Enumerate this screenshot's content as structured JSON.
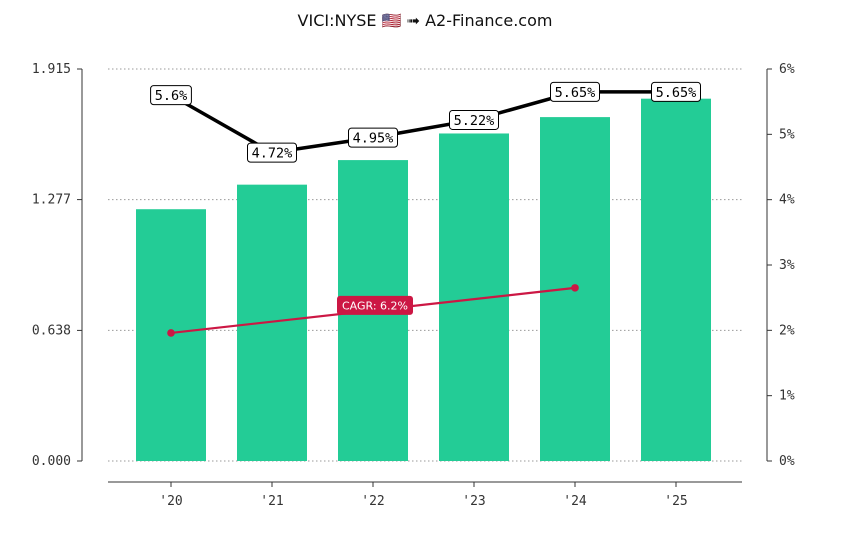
{
  "title": "VICI:NYSE 🇺🇸 ➟ A2-Finance.com",
  "chart_data": {
    "type": "bar",
    "categories": [
      "'20",
      "'21",
      "'22",
      "'23",
      "'24",
      "'25"
    ],
    "series": [
      {
        "values": [
          1.23,
          1.35,
          1.47,
          1.6,
          1.68,
          1.77
        ]
      }
    ],
    "yield_line": {
      "values": [
        5.6,
        4.72,
        4.95,
        5.22,
        5.65,
        5.65
      ],
      "labels": [
        "5.6%",
        "4.72%",
        "4.95%",
        "5.22%",
        "5.65%",
        "5.65%"
      ]
    },
    "cagr_line": {
      "label": "CAGR: 6.2%",
      "start_index": 0,
      "end_index": 4,
      "start_value": 1.96,
      "end_value": 2.65
    },
    "left_axis": {
      "ticks": [
        "0.000",
        "0.638",
        "1.277",
        "1.915"
      ],
      "values": [
        0,
        0.638,
        1.277,
        1.915
      ],
      "ylim": [
        0,
        1.915
      ]
    },
    "right_axis": {
      "ticks": [
        "0%",
        "1%",
        "2%",
        "3%",
        "4%",
        "5%",
        "6%"
      ],
      "values": [
        0,
        1,
        2,
        3,
        4,
        5,
        6
      ],
      "ylim": [
        0,
        6
      ]
    },
    "grid": true,
    "colors": {
      "bar": "#23cc96",
      "yield_line": "#000000",
      "cagr_line": "#cc1744",
      "grid": "#999999"
    }
  }
}
